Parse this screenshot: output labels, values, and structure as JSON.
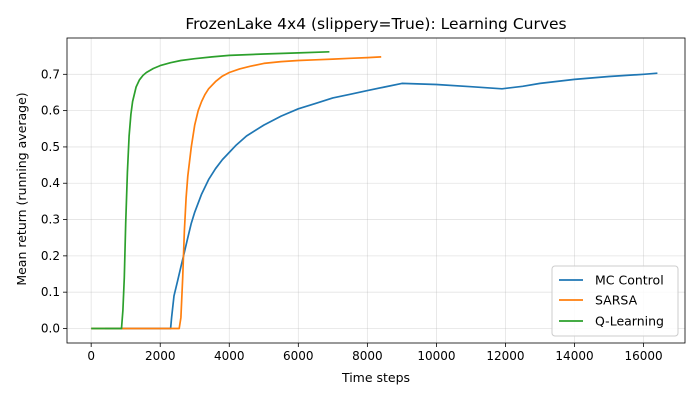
{
  "chart_data": {
    "type": "line",
    "title": "FrozenLake 4x4 (slippery=True): Learning Curves",
    "xlabel": "Time steps",
    "ylabel": "Mean return (running average)",
    "xlim": [
      -700,
      17200
    ],
    "ylim": [
      -0.04,
      0.8
    ],
    "xticks": [
      0,
      2000,
      4000,
      6000,
      8000,
      10000,
      12000,
      14000,
      16000
    ],
    "yticks": [
      0.0,
      0.1,
      0.2,
      0.3,
      0.4,
      0.5,
      0.6,
      0.7
    ],
    "ytick_labels": [
      "0.0",
      "0.1",
      "0.2",
      "0.3",
      "0.4",
      "0.5",
      "0.6",
      "0.7"
    ],
    "grid": true,
    "legend_position": "lower-right",
    "series": [
      {
        "name": "MC Control",
        "color": "#1f77b4",
        "x": [
          400,
          2300,
          2330,
          2400,
          2500,
          2600,
          2700,
          2800,
          2900,
          3000,
          3200,
          3400,
          3600,
          3800,
          4000,
          4200,
          4500,
          5000,
          5500,
          6000,
          6500,
          7000,
          7500,
          8000,
          8500,
          9000,
          10000,
          11000,
          11900,
          12500,
          13000,
          14000,
          15000,
          16000,
          16400
        ],
        "y": [
          0.0,
          0.0,
          0.03,
          0.09,
          0.13,
          0.17,
          0.21,
          0.25,
          0.29,
          0.32,
          0.37,
          0.41,
          0.44,
          0.465,
          0.485,
          0.505,
          0.53,
          0.56,
          0.585,
          0.605,
          0.62,
          0.635,
          0.645,
          0.655,
          0.665,
          0.675,
          0.672,
          0.666,
          0.66,
          0.667,
          0.675,
          0.686,
          0.694,
          0.7,
          0.703
        ]
      },
      {
        "name": "SARSA",
        "color": "#ff7f0e",
        "x": [
          0,
          2550,
          2600,
          2650,
          2700,
          2750,
          2800,
          2900,
          3000,
          3100,
          3200,
          3300,
          3400,
          3600,
          3800,
          4000,
          4300,
          4600,
          5000,
          5500,
          6000,
          6500,
          7000,
          7500,
          8000,
          8400
        ],
        "y": [
          0.0,
          0.0,
          0.03,
          0.14,
          0.27,
          0.36,
          0.42,
          0.5,
          0.56,
          0.6,
          0.625,
          0.645,
          0.66,
          0.68,
          0.695,
          0.705,
          0.715,
          0.722,
          0.73,
          0.735,
          0.738,
          0.74,
          0.742,
          0.744,
          0.746,
          0.748
        ]
      },
      {
        "name": "Q-Learning",
        "color": "#2ca02c",
        "x": [
          0,
          880,
          920,
          960,
          1000,
          1050,
          1100,
          1150,
          1200,
          1300,
          1400,
          1500,
          1600,
          1800,
          2000,
          2300,
          2600,
          3000,
          3500,
          4000,
          5000,
          6000,
          6900
        ],
        "y": [
          0.0,
          0.0,
          0.05,
          0.14,
          0.29,
          0.43,
          0.53,
          0.59,
          0.625,
          0.665,
          0.685,
          0.697,
          0.705,
          0.716,
          0.724,
          0.732,
          0.738,
          0.743,
          0.748,
          0.752,
          0.756,
          0.759,
          0.762
        ]
      }
    ]
  }
}
